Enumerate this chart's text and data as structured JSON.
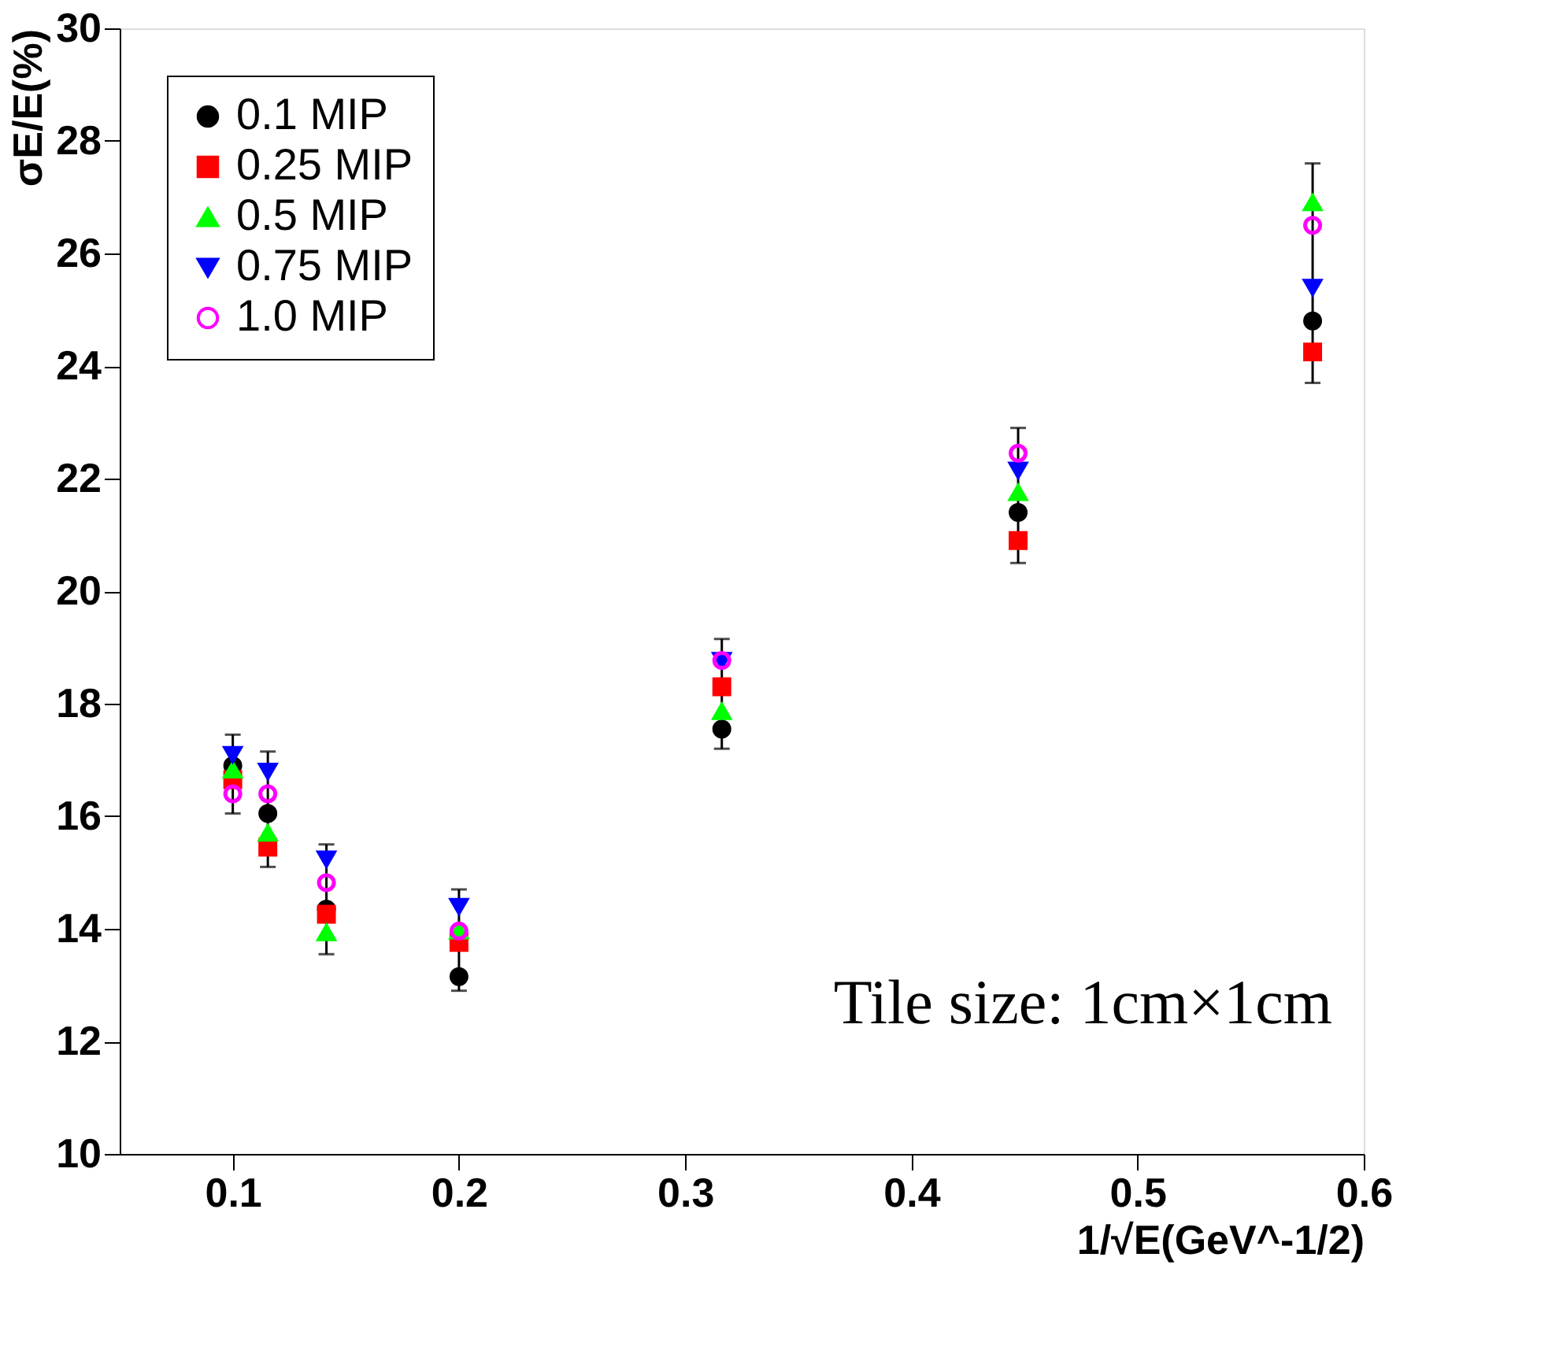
{
  "chart_data": {
    "type": "scatter",
    "xlabel": "1/√E(GeV^-1/2)",
    "ylabel": "σE/E(%)",
    "x": [
      0.1,
      0.1155,
      0.1414,
      0.2,
      0.3162,
      0.4472,
      0.5774
    ],
    "xlim": [
      0.05,
      0.6
    ],
    "xticks": [
      0.1,
      0.2,
      0.3,
      0.4,
      0.5,
      0.6
    ],
    "ylim": [
      10,
      30
    ],
    "yticks": [
      10,
      12,
      14,
      16,
      18,
      20,
      22,
      24,
      26,
      28,
      30
    ],
    "grid": false,
    "legend": "top left",
    "annotations": [
      "Tile size: 1cm×1cm"
    ],
    "series": [
      {
        "name": "0.1  MIP",
        "color": "#000000",
        "marker": "circle",
        "values": [
          16.9,
          16.05,
          14.35,
          13.15,
          17.55,
          21.4,
          24.8
        ],
        "errors": [
          [
            16.05,
            17.45
          ],
          [
            15.1,
            17.15
          ],
          [
            13.55,
            15.5
          ],
          [
            12.9,
            14.7
          ],
          [
            17.2,
            19.15
          ],
          [
            20.5,
            22.9
          ],
          [
            23.7,
            27.6
          ]
        ]
      },
      {
        "name": "0.25 MIP",
        "color": "#ff0000",
        "marker": "square",
        "values": [
          16.65,
          15.45,
          14.26,
          13.76,
          18.3,
          20.9,
          24.25
        ]
      },
      {
        "name": "0.5  MIP",
        "color": "#00ff00",
        "marker": "triangle",
        "values": [
          16.82,
          15.7,
          13.93,
          13.96,
          17.86,
          21.75,
          26.9
        ]
      },
      {
        "name": "0.75 MIP",
        "color": "#0000ff",
        "marker": "triangle-down",
        "values": [
          17.1,
          16.8,
          15.24,
          14.4,
          18.77,
          22.15,
          25.4
        ]
      },
      {
        "name": "1.0  MIP",
        "color": "#ff00ff",
        "marker": "circle-open",
        "values": [
          16.4,
          16.4,
          14.82,
          13.96,
          18.77,
          22.45,
          26.5
        ]
      }
    ]
  }
}
